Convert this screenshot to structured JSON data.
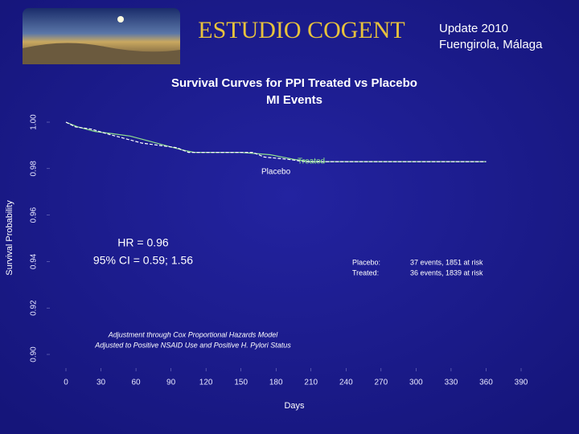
{
  "header": {
    "title": "ESTUDIO COGENT",
    "update": "Update 2010",
    "location": "Fuengirola, Málaga"
  },
  "chart_data": {
    "type": "line",
    "title": "Survival Curves for PPI Treated vs Placebo",
    "subtitle": "MI Events",
    "x_label": "Days",
    "y_label": "Survival Probability",
    "xlim": [
      0,
      390
    ],
    "xticks": [
      0,
      30,
      60,
      90,
      120,
      150,
      180,
      210,
      240,
      270,
      300,
      330,
      360,
      390
    ],
    "ylim": [
      0.9,
      1.0
    ],
    "yticks": [
      {
        "value": 0.9,
        "label": "0.90"
      },
      {
        "value": 0.92,
        "label": "0.92"
      },
      {
        "value": 0.94,
        "label": "0.94"
      },
      {
        "value": 0.96,
        "label": "0.96"
      },
      {
        "value": 0.98,
        "label": "0.98"
      },
      {
        "value": 1.0,
        "label": "1.00"
      }
    ],
    "series": [
      {
        "name": "Treated",
        "color": "#8fe08f",
        "x": [
          0,
          10,
          25,
          40,
          55,
          70,
          85,
          100,
          110,
          150,
          175,
          195,
          210,
          360
        ],
        "values": [
          1.0,
          0.998,
          0.996,
          0.995,
          0.994,
          0.992,
          0.99,
          0.988,
          0.987,
          0.987,
          0.986,
          0.984,
          0.983,
          0.983
        ]
      },
      {
        "name": "Placebo",
        "color": "#ffffff",
        "x": [
          0,
          8,
          22,
          35,
          50,
          65,
          80,
          95,
          105,
          160,
          170,
          190,
          205,
          360
        ],
        "values": [
          1.0,
          0.998,
          0.997,
          0.995,
          0.993,
          0.991,
          0.99,
          0.989,
          0.987,
          0.987,
          0.985,
          0.984,
          0.983,
          0.983
        ]
      }
    ],
    "annotations": {
      "hr": "HR = 0.96",
      "ci": "95% CI = 0.59; 1.56",
      "adjustment_1": "Adjustment through Cox Proportional Hazards Model",
      "adjustment_2": "Adjusted to Positive NSAID Use and  Positive H. Pylori Status",
      "placebo_label": "Placebo:",
      "placebo_stats": "37 events, 1851 at risk",
      "treated_label": "Treated:",
      "treated_stats": "36 events, 1839 at risk"
    }
  }
}
